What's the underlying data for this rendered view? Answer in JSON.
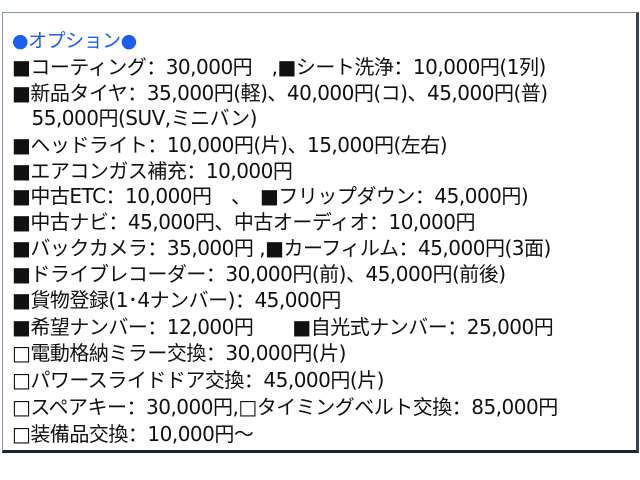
{
  "title": "●オプション●",
  "accent_color": "#1a5ff0",
  "lines": [
    "■コーティング：30,000円　,■シート洗浄：10,000円(1列)",
    "■新品タイヤ：35,000円(軽)、40,000円(コ)、45,000円(普)",
    "　55,000円(SUV,ミニバン)",
    "■ヘッドライト：10,000円(片)、15,000円(左右)",
    "■エアコンガス補充：10,000円",
    "■中古ETC：10,000円　、　■フリップダウン：45,000円)",
    "■中古ナビ：45,000円、中古オーディオ：10,000円",
    "■バックカメラ：35,000円 ,■カーフィルム：45,000円(3面)",
    "■ドライブレコーダー：30,000円(前)、45,000円(前後)",
    "■貨物登録(1･4ナンバー)：45,000円",
    "■希望ナンバー：12,000円　　■自光式ナンバー：25,000円",
    "□電動格納ミラー交換：30,000円(片)",
    "□パワースライドドア交換：45,000円(片)",
    "□スペアキー：30,000円,□タイミングベルト交換：85,000円",
    "□装備品交換：10,000円～"
  ]
}
